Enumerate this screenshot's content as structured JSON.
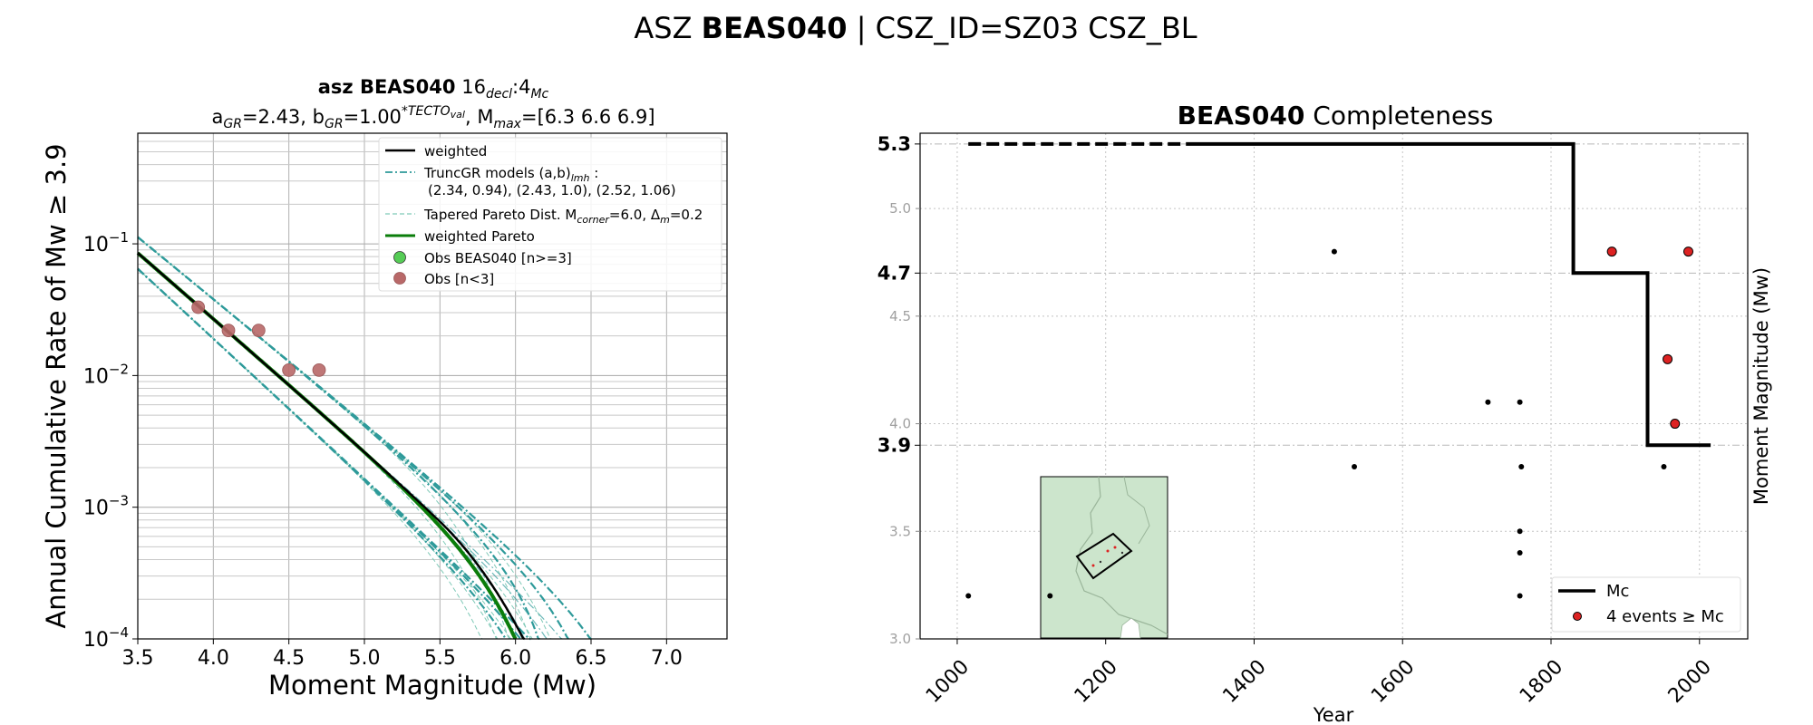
{
  "suptitle": {
    "prefix": "ASZ ",
    "bold": "BEAS040",
    "suffix": " | CSZ_ID=SZ03 CSZ_BL"
  },
  "chart_data": [
    {
      "type": "line",
      "panel": "left",
      "title1": {
        "bold": "asz BEAS040",
        "rest": "  16",
        "sub1": "decl",
        "mid": ":4",
        "sub2": "Mc"
      },
      "title2": {
        "a_pre": "a",
        "a_sub": "GR",
        "a_val": "=2.43,  b",
        "b_sub": "GR",
        "b_val": "=1.00",
        "sup": "*TECTO",
        "sup_sub": "val",
        "mmax_pre": ", M",
        "mmax_sub": "max",
        "mmax_val": "=[6.3 6.6 6.9]"
      },
      "xlabel": "Moment Magnitude (Mw)",
      "ylabel": "Annual Cumulative Rate of Mw  ≥  3.9",
      "xlim": [
        3.5,
        7.4
      ],
      "ylim_log10": [
        -4,
        -0.16
      ],
      "yscale": "log",
      "xticks": [
        "3.5",
        "4.0",
        "4.5",
        "5.0",
        "5.5",
        "6.0",
        "6.5",
        "7.0"
      ],
      "yticks": [
        {
          "base": "10",
          "exp": "−1"
        },
        {
          "base": "10",
          "exp": "−2"
        },
        {
          "base": "10",
          "exp": "−3"
        },
        {
          "base": "10",
          "exp": "−4"
        }
      ],
      "grid": true,
      "legend": {
        "placement": "top-right",
        "entries": [
          {
            "label": "weighted"
          },
          {
            "label": "TruncGR models (a,b)",
            "label_sub": "lmh",
            "label_end": " :",
            "label2": "(2.34, 0.94), (2.43, 1.0), (2.52, 1.06)"
          },
          {
            "label": "Tapered Pareto Dist. M",
            "label_sub": "corner",
            "label_end": "=6.0, Δ",
            "label_sub2": "m",
            "label_end2": "=0.2"
          },
          {
            "label": "weighted Pareto"
          },
          {
            "label": "Obs BEAS040 [n>=3]"
          },
          {
            "label": "Obs [n<3]"
          }
        ]
      },
      "truncgr_models": [
        {
          "a": 2.34,
          "b": 0.94
        },
        {
          "a": 2.43,
          "b": 1.0
        },
        {
          "a": 2.52,
          "b": 1.06
        }
      ],
      "mmax": [
        6.3,
        6.6,
        6.9
      ],
      "observations_n_lt_3": [
        {
          "x": 3.9,
          "y": 0.033
        },
        {
          "x": 4.1,
          "y": 0.022
        },
        {
          "x": 4.3,
          "y": 0.022
        },
        {
          "x": 4.5,
          "y": 0.011
        },
        {
          "x": 4.7,
          "y": 0.011
        }
      ],
      "colors": {
        "weighted": "#000000",
        "truncgr": "#2e9a9a",
        "tapered": "#7fc9b7",
        "weighted_pareto": "#0a7d0a",
        "obs_n3": "#55cc55",
        "obs_lt3": "#b86868"
      }
    },
    {
      "type": "scatter",
      "panel": "right",
      "title": {
        "bold": "BEAS040",
        "rest": " Completeness"
      },
      "xlabel": "Year",
      "ylabel": "Moment Magnitude (Mw)",
      "xlim": [
        950,
        2065
      ],
      "ylim": [
        3.0,
        5.35
      ],
      "xticks": [
        "1000",
        "1200",
        "1400",
        "1600",
        "1800",
        "2000"
      ],
      "yticks_minor": [
        "3.0",
        "3.5",
        "4.0",
        "4.5",
        "5.0"
      ],
      "yticks_mc": [
        "3.9",
        "4.7",
        "5.3"
      ],
      "mc_steps": {
        "dashed": [
          [
            1015,
            5.3
          ],
          [
            1320,
            5.3
          ]
        ],
        "solid": [
          [
            1320,
            5.3
          ],
          [
            1830,
            5.3
          ],
          [
            1830,
            4.7
          ],
          [
            1930,
            4.7
          ],
          [
            1930,
            3.9
          ],
          [
            2015,
            3.9
          ]
        ]
      },
      "events_below_mc": [
        {
          "x": 1015,
          "y": 3.2
        },
        {
          "x": 1125,
          "y": 3.2
        },
        {
          "x": 1508,
          "y": 4.8
        },
        {
          "x": 1535,
          "y": 3.8
        },
        {
          "x": 1715,
          "y": 4.1
        },
        {
          "x": 1758,
          "y": 4.1
        },
        {
          "x": 1760,
          "y": 3.8
        },
        {
          "x": 1758,
          "y": 3.5
        },
        {
          "x": 1758,
          "y": 3.4
        },
        {
          "x": 1758,
          "y": 3.2
        },
        {
          "x": 1952,
          "y": 3.8
        }
      ],
      "events_above_mc": [
        {
          "x": 1882,
          "y": 4.8
        },
        {
          "x": 1985,
          "y": 4.8
        },
        {
          "x": 1957,
          "y": 4.3
        },
        {
          "x": 1967,
          "y": 4.0
        }
      ],
      "legend": {
        "placement": "bottom-right",
        "entries": [
          {
            "label": "Mc"
          },
          {
            "label": "4 events  ≥  Mc"
          }
        ]
      },
      "colors": {
        "mc": "#000000",
        "events_above": "#dd2222",
        "events_below": "#000000",
        "inset_land": "#cce5cc"
      }
    }
  ]
}
